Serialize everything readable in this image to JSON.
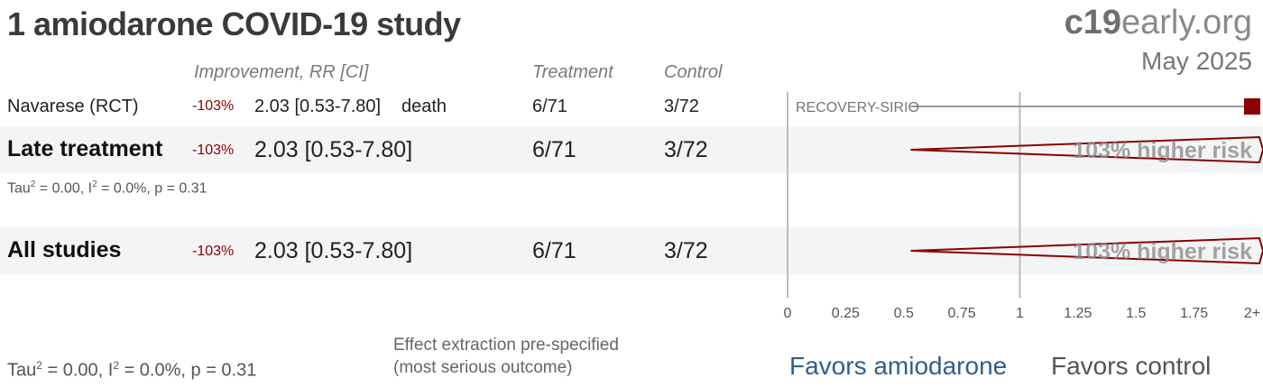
{
  "title": "1 amiodarone COVID-19 study",
  "brand": {
    "prefix": "c19",
    "suffix": "early.org"
  },
  "date": "May 2025",
  "headers": {
    "improvement": "Improvement, RR [CI]",
    "treatment": "Treatment",
    "control": "Control"
  },
  "study": {
    "label": "Navarese (RCT)",
    "improvement": "-103%",
    "rr_ci": "2.03 [0.53-7.80]",
    "outcome": "death",
    "treatment": "6/71",
    "control": "3/72",
    "plot_label": "RECOVERY-SIRIO"
  },
  "late": {
    "label": "Late treatment",
    "improvement": "-103%",
    "rr_ci": "2.03 [0.53-7.80]",
    "treatment": "6/71",
    "control": "3/72",
    "risk_text": "103% higher risk",
    "het": {
      "tau": "Tau",
      "tau_rest": " = 0.00, I",
      "i_rest": " = 0.0%, p = 0.31",
      "sup": "2"
    }
  },
  "all": {
    "label": "All studies",
    "improvement": "-103%",
    "rr_ci": "2.03 [0.53-7.80]",
    "treatment": "6/71",
    "control": "3/72",
    "risk_text": "103% higher risk"
  },
  "footer": {
    "het": {
      "tau": "Tau",
      "tau_rest": " = 0.00, I",
      "i_rest": " = 0.0%, p = 0.31",
      "sup": "2"
    },
    "note_line1": "Effect extraction pre-specified",
    "note_line2": "(most serious outcome)",
    "favors_left": "Favors amiodarone",
    "favors_right": "Favors control"
  },
  "colors": {
    "effect": "#8b0000",
    "favors_left": "#2f5f8f",
    "axis": "#bbbbbb"
  },
  "chart_data": {
    "type": "forest",
    "xlim": [
      0,
      2
    ],
    "reference": 1,
    "ticks": [
      0,
      0.25,
      0.5,
      0.75,
      1,
      1.25,
      1.5,
      1.75,
      2
    ],
    "tick_labels": [
      "0",
      "0.25",
      "0.5",
      "0.75",
      "1",
      "1.25",
      "1.5",
      "1.75",
      "2+"
    ],
    "studies": [
      {
        "name": "RECOVERY-SIRIO",
        "rr": 2.03,
        "ci_low": 0.53,
        "ci_high": 7.8
      }
    ],
    "pooled": [
      {
        "name": "Late treatment",
        "rr": 2.03,
        "ci_low": 0.53,
        "ci_high": 7.8
      },
      {
        "name": "All studies",
        "rr": 2.03,
        "ci_low": 0.53,
        "ci_high": 7.8
      }
    ]
  }
}
